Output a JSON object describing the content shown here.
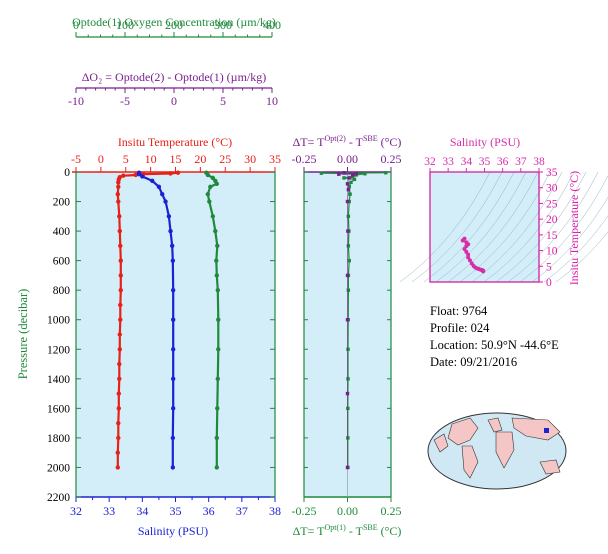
{
  "colors": {
    "oxygen": "#1f8a3a",
    "temperature": "#e8201a",
    "salinity": "#1b22d4",
    "delta_o2": "#7a1f8f",
    "ts_salinity": "#d42fa8",
    "ts_temperature": "#e01eaa",
    "panel_bg": "#d3eef8",
    "axis_blue": "#1b22d4",
    "dt_axis": "#7a1f8f"
  },
  "info": {
    "float": "Float:  9764",
    "profile": "Profile:  024",
    "location": "Location:  50.9°N  -44.6°E",
    "date": "Date:  09/21/2016"
  },
  "axes_text": {
    "oxygen_title": "Optode(1) Oxygen Concentration  (µm/kg)",
    "oxygen_ticks": [
      "0",
      "100",
      "200",
      "300",
      "400"
    ],
    "delta_title": "ΔO₂ = Optode(2) - Optode(1)   (µm/kg)",
    "delta_ticks": [
      "-10",
      "-5",
      "0",
      "5",
      "10"
    ],
    "temp_title": "Insitu Temperature  (°C)",
    "temp_ticks": [
      "-5",
      "0",
      "5",
      "10",
      "15",
      "20",
      "25",
      "30",
      "35"
    ],
    "salinity_title": "Salinity (PSU)",
    "salinity_ticks": [
      "32",
      "33",
      "34",
      "35",
      "36",
      "37",
      "38"
    ],
    "pressure_title": "Pressure (decibar)",
    "pressure_ticks": [
      "0",
      "200",
      "400",
      "600",
      "800",
      "1000",
      "1200",
      "1400",
      "1600",
      "1800",
      "2000",
      "2200"
    ],
    "dt_top_title": "ΔT= T^(Opt(2)) - T^(SBE)  (°C)",
    "dt_bottom_title": "ΔT= T^(Opt(1)) - T^(SBE)  (°C)",
    "dt_ticks": [
      "-0.25",
      "0.00",
      "0.25"
    ],
    "ts_title": "Salinity (PSU)",
    "ts_sal_ticks": [
      "32",
      "33",
      "34",
      "35",
      "36",
      "37",
      "38"
    ],
    "ts_temp_title": "Insitu Temperature (°C)",
    "ts_temp_ticks": [
      "0",
      "5",
      "10",
      "15",
      "20",
      "25",
      "30",
      "35"
    ]
  },
  "chart_data": [
    {
      "type": "line",
      "name": "profile",
      "ylim": [
        2200,
        0
      ],
      "series": [
        {
          "name": "Insitu Temperature",
          "unit": "°C",
          "xlim": [
            -5,
            35
          ],
          "points": [
            [
              15.5,
              5
            ],
            [
              14.0,
              10
            ],
            [
              8.5,
              15
            ],
            [
              7.0,
              20
            ],
            [
              4.5,
              25
            ],
            [
              3.8,
              35
            ],
            [
              3.6,
              50
            ],
            [
              3.5,
              70
            ],
            [
              3.5,
              100
            ],
            [
              3.4,
              150
            ],
            [
              3.5,
              200
            ],
            [
              3.7,
              300
            ],
            [
              3.8,
              400
            ],
            [
              3.9,
              500
            ],
            [
              4.0,
              600
            ],
            [
              4.0,
              700
            ],
            [
              4.0,
              800
            ],
            [
              3.9,
              900
            ],
            [
              3.9,
              1000
            ],
            [
              3.8,
              1100
            ],
            [
              3.8,
              1200
            ],
            [
              3.7,
              1300
            ],
            [
              3.7,
              1400
            ],
            [
              3.6,
              1500
            ],
            [
              3.6,
              1600
            ],
            [
              3.5,
              1700
            ],
            [
              3.5,
              1800
            ],
            [
              3.4,
              1900
            ],
            [
              3.4,
              2000
            ]
          ]
        },
        {
          "name": "Salinity",
          "unit": "PSU",
          "xlim": [
            32,
            38
          ],
          "points": [
            [
              33.9,
              5
            ],
            [
              33.9,
              15
            ],
            [
              34.0,
              30
            ],
            [
              34.3,
              60
            ],
            [
              34.5,
              100
            ],
            [
              34.6,
              150
            ],
            [
              34.7,
              200
            ],
            [
              34.8,
              300
            ],
            [
              34.85,
              400
            ],
            [
              34.9,
              500
            ],
            [
              34.92,
              600
            ],
            [
              34.93,
              800
            ],
            [
              34.93,
              1000
            ],
            [
              34.93,
              1200
            ],
            [
              34.93,
              1400
            ],
            [
              34.93,
              1600
            ],
            [
              34.92,
              1800
            ],
            [
              34.92,
              2000
            ]
          ]
        },
        {
          "name": "Oxygen Concentration",
          "unit": "µm/kg",
          "xlim": [
            0,
            400
          ],
          "points": [
            [
              262,
              5
            ],
            [
              265,
              20
            ],
            [
              275,
              40
            ],
            [
              280,
              60
            ],
            [
              283,
              80
            ],
            [
              270,
              100
            ],
            [
              265,
              150
            ],
            [
              268,
              200
            ],
            [
              275,
              300
            ],
            [
              280,
              400
            ],
            [
              284,
              500
            ],
            [
              282,
              600
            ],
            [
              283,
              700
            ],
            [
              285,
              800
            ],
            [
              286,
              1000
            ],
            [
              286,
              1200
            ],
            [
              285,
              1400
            ],
            [
              284,
              1600
            ],
            [
              283,
              1800
            ],
            [
              283,
              2000
            ]
          ]
        }
      ]
    },
    {
      "type": "scatter",
      "name": "delta-T",
      "xlim": [
        -0.25,
        0.25
      ],
      "ylim": [
        2200,
        0
      ],
      "series": [
        {
          "name": "Opt(2) - SBE",
          "points": [
            [
              0.22,
              5
            ],
            [
              -0.15,
              8
            ],
            [
              0.1,
              12
            ],
            [
              0.05,
              20
            ],
            [
              0.03,
              30
            ],
            [
              -0.02,
              40
            ],
            [
              0.04,
              50
            ],
            [
              0.02,
              70
            ],
            [
              0.01,
              100
            ],
            [
              0.015,
              150
            ],
            [
              0.01,
              200
            ],
            [
              0.005,
              300
            ],
            [
              0.008,
              400
            ],
            [
              0.005,
              500
            ],
            [
              0.01,
              600
            ],
            [
              0.005,
              700
            ],
            [
              0.005,
              800
            ],
            [
              0.004,
              1000
            ],
            [
              0.003,
              1200
            ],
            [
              0.003,
              1400
            ],
            [
              0.002,
              1600
            ],
            [
              0.002,
              1800
            ],
            [
              0.002,
              2000
            ]
          ]
        },
        {
          "name": "Opt(1) - SBE",
          "points": [
            [
              -0.02,
              5
            ],
            [
              0.05,
              10
            ],
            [
              -0.05,
              15
            ],
            [
              0.03,
              20
            ],
            [
              0.01,
              40
            ],
            [
              0.0,
              80
            ],
            [
              0.005,
              120
            ],
            [
              0.0,
              200
            ],
            [
              0.002,
              400
            ],
            [
              0.0,
              700
            ],
            [
              0.0,
              1000
            ],
            [
              0.0,
              1500
            ],
            [
              0.0,
              2000
            ]
          ]
        }
      ]
    },
    {
      "type": "scatter",
      "name": "T-S diagram",
      "xlim": [
        32,
        38
      ],
      "ylim": [
        0,
        35
      ],
      "points": [
        [
          33.9,
          13.8
        ],
        [
          33.8,
          13.2
        ],
        [
          34.0,
          12.6
        ],
        [
          34.1,
          12.0
        ],
        [
          34.0,
          11.4
        ],
        [
          33.9,
          10.5
        ],
        [
          34.0,
          9.6
        ],
        [
          34.1,
          8.7
        ],
        [
          34.1,
          7.8
        ],
        [
          34.2,
          6.9
        ],
        [
          34.3,
          5.9
        ],
        [
          34.4,
          5.1
        ],
        [
          34.5,
          4.6
        ],
        [
          34.6,
          4.3
        ],
        [
          34.7,
          4.1
        ],
        [
          34.8,
          3.9
        ],
        [
          34.85,
          3.8
        ],
        [
          34.9,
          3.7
        ],
        [
          34.92,
          3.6
        ],
        [
          34.93,
          3.5
        ],
        [
          34.93,
          3.4
        ]
      ]
    }
  ]
}
